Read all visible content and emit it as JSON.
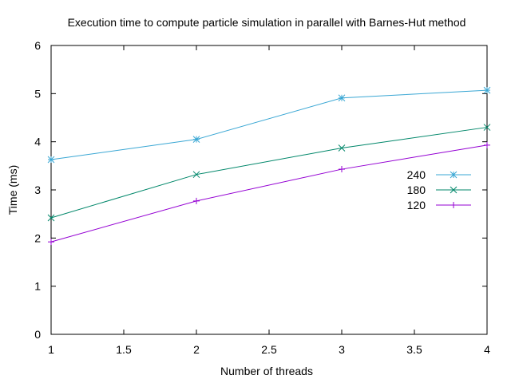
{
  "chart_data": {
    "type": "line",
    "title": "Execution time to compute particle simulation in parallel with Barnes-Hut method",
    "xlabel": "Number of threads",
    "ylabel": "Time (ms)",
    "xlim": [
      1,
      4
    ],
    "ylim": [
      0,
      6
    ],
    "x_ticks": [
      "1",
      "1.5",
      "2",
      "2.5",
      "3",
      "3.5",
      "4"
    ],
    "y_ticks": [
      "0",
      "1",
      "2",
      "3",
      "4",
      "5",
      "6"
    ],
    "x_tick_values": [
      1,
      1.5,
      2,
      2.5,
      3,
      3.5,
      4
    ],
    "y_tick_values": [
      0,
      1,
      2,
      3,
      4,
      5,
      6
    ],
    "grid": false,
    "legend_position": "right",
    "x": [
      1,
      2,
      3,
      4
    ],
    "series": [
      {
        "name": "240",
        "values": [
          3.63,
          4.05,
          4.91,
          5.07
        ],
        "color": "#3aa7d4",
        "marker": "asterisk"
      },
      {
        "name": "180",
        "values": [
          2.42,
          3.32,
          3.87,
          4.3
        ],
        "color": "#00876a",
        "marker": "x"
      },
      {
        "name": "120",
        "values": [
          1.92,
          2.77,
          3.43,
          3.93
        ],
        "color": "#9400d3",
        "marker": "plus"
      }
    ]
  }
}
